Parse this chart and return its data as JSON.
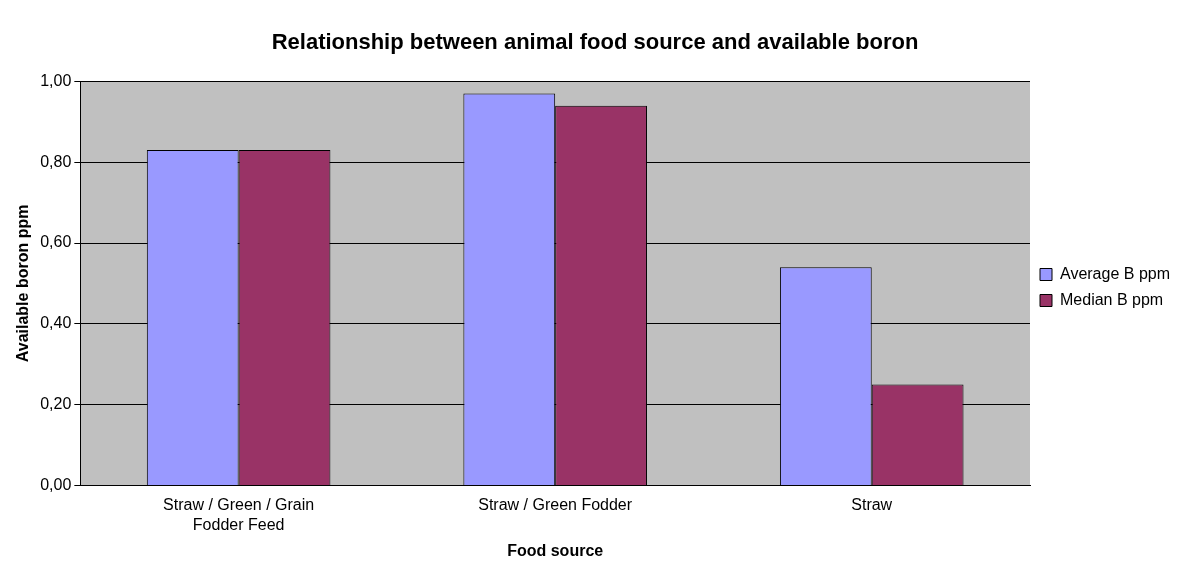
{
  "chart_data": {
    "type": "bar",
    "title": "Relationship between animal food source and available boron",
    "xlabel": "Food source",
    "ylabel": "Available boron ppm",
    "categories": [
      "Straw / Green / Grain Fodder Feed",
      "Straw / Green Fodder",
      "Straw"
    ],
    "series": [
      {
        "name": "Average B ppm",
        "color": "#9999ff",
        "values": [
          0.83,
          0.97,
          0.54
        ]
      },
      {
        "name": "Median B ppm",
        "color": "#993366",
        "values": [
          0.83,
          0.94,
          0.25
        ]
      }
    ],
    "ylim": [
      0,
      1
    ],
    "yticks": [
      {
        "value": 0,
        "label": "0,00"
      },
      {
        "value": 0.2,
        "label": "0,20"
      },
      {
        "value": 0.4,
        "label": "0,40"
      },
      {
        "value": 0.6,
        "label": "0,60"
      },
      {
        "value": 0.8,
        "label": "0,80"
      },
      {
        "value": 1,
        "label": "1,00"
      }
    ],
    "grid": "y",
    "legend": "right"
  }
}
